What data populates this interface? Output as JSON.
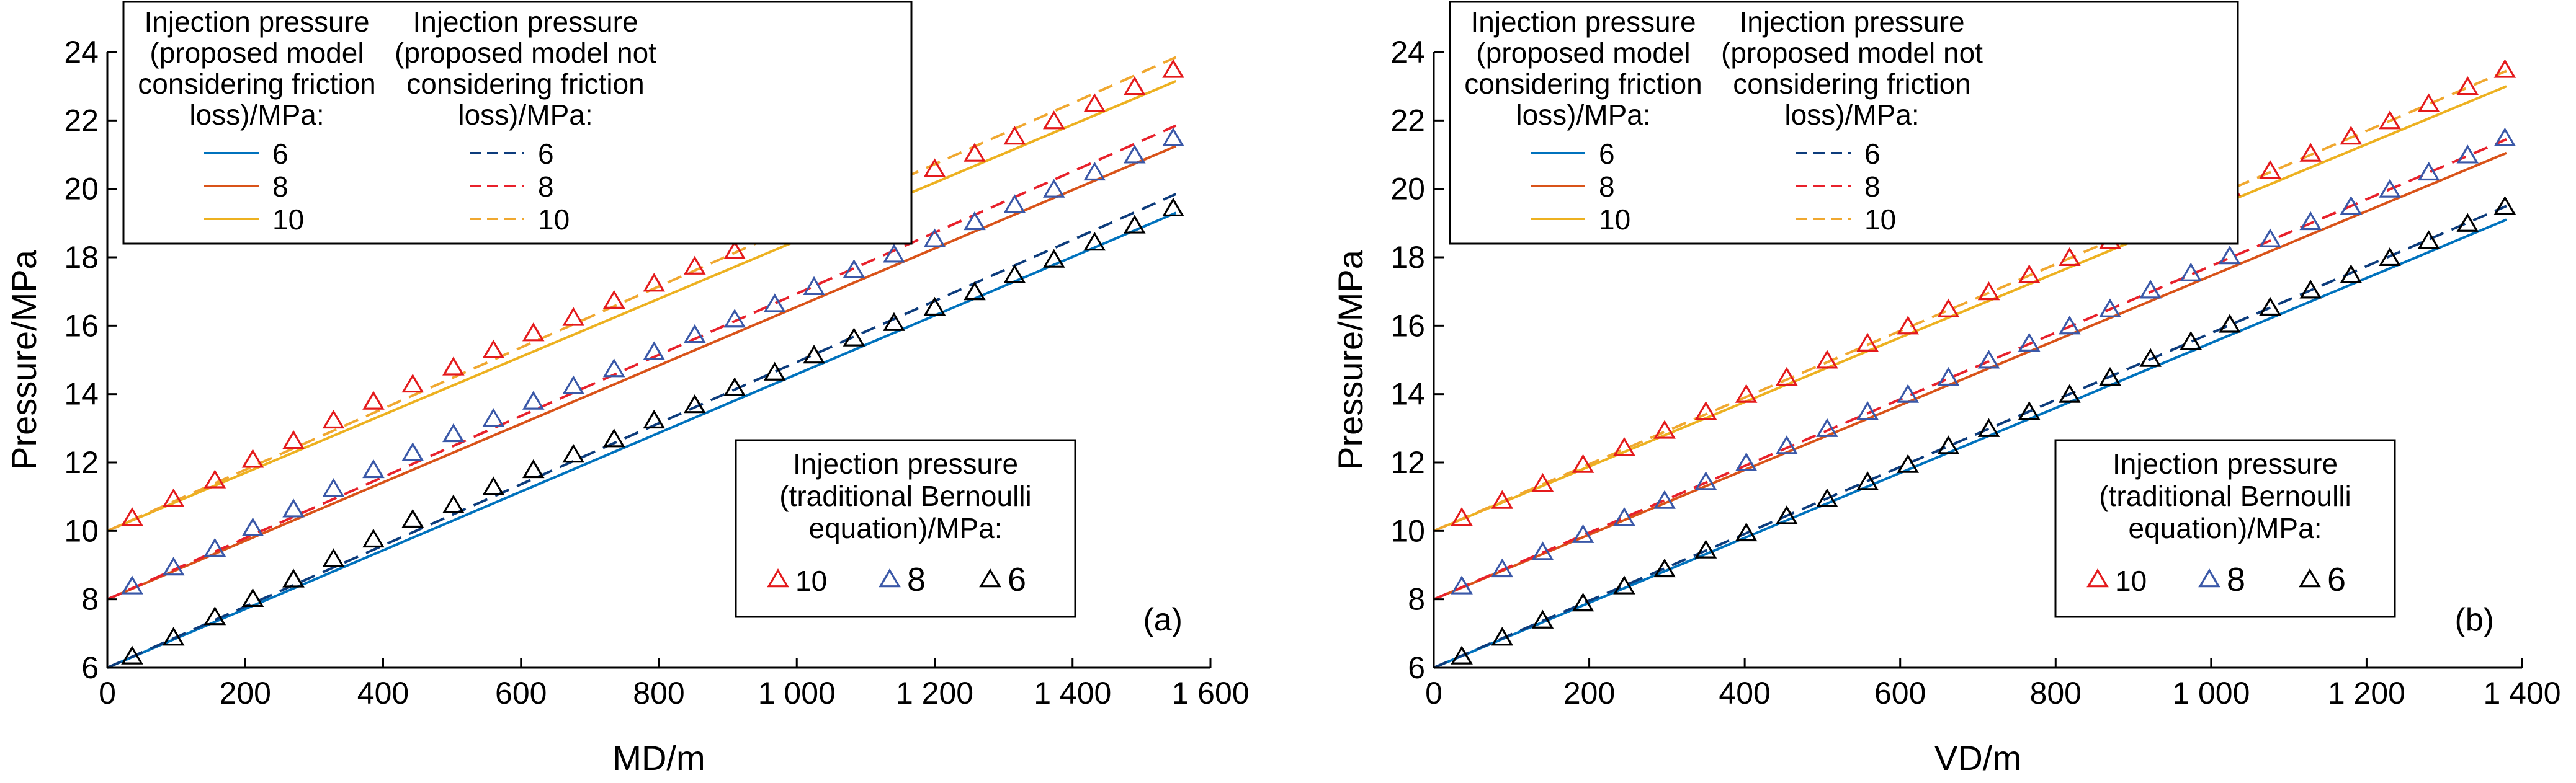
{
  "colors": {
    "p6_line": "#0072BD",
    "p8_line": "#D95319",
    "p10_line": "#EDB120",
    "p6_dash": "#0D3C7C",
    "p8_dash": "#E8212B",
    "p10_dash": "#F0A830",
    "p6_marker": "#000000",
    "p8_marker": "#3A58A8",
    "p10_marker": "#E41A1C",
    "axis": "#000000"
  },
  "chart_data": [
    {
      "type": "line",
      "panel_label": "(a)",
      "xlabel": "MD/m",
      "ylabel": "Pressure/MPa",
      "xlim": [
        0,
        1600
      ],
      "ylim": [
        6,
        24
      ],
      "x_ticks": [
        0,
        200,
        400,
        600,
        800,
        1000,
        1200,
        1400,
        1600
      ],
      "x_tick_labels": [
        "0",
        "200",
        "400",
        "600",
        "800",
        "1 000",
        "1 200",
        "1 400",
        "1 600"
      ],
      "y_ticks": [
        6,
        8,
        10,
        12,
        14,
        16,
        18,
        20,
        22,
        24
      ],
      "y_tick_labels": [
        "6",
        "8",
        "10",
        "12",
        "14",
        "16",
        "18",
        "20",
        "22",
        "24"
      ],
      "grid": false,
      "legend_friction_title": "Injection pressure (proposed model considering friction loss)/MPa:",
      "legend_friction_title_lines": [
        "Injection pressure",
        "(proposed model",
        "considering friction",
        "loss)/MPa:"
      ],
      "legend_nofriction_title": "Injection pressure (proposed model not considering friction loss)/MPa:",
      "legend_nofriction_title_lines": [
        "Injection pressure",
        "(proposed model not",
        "considering friction",
        "loss)/MPa:"
      ],
      "legend_bernoulli_title": "Injection pressure (traditional Bernoulli equation)/MPa:",
      "legend_bernoulli_title_lines": [
        "Injection pressure",
        "(traditional Bernoulli",
        "equation)/MPa:"
      ],
      "legend_line_labels": [
        "6",
        "8",
        "10"
      ],
      "legend_marker_labels": [
        "10",
        "8",
        "6"
      ],
      "series": [
        {
          "name": "6",
          "kind": "solid",
          "x": [
            0,
            1550
          ],
          "y": [
            6.0,
            19.3
          ]
        },
        {
          "name": "8",
          "kind": "solid",
          "x": [
            0,
            1550
          ],
          "y": [
            8.0,
            21.25
          ]
        },
        {
          "name": "10",
          "kind": "solid",
          "x": [
            0,
            1550
          ],
          "y": [
            10.0,
            23.15
          ]
        },
        {
          "name": "6",
          "kind": "dashed",
          "x": [
            0,
            1550
          ],
          "y": [
            6.0,
            19.85
          ]
        },
        {
          "name": "8",
          "kind": "dashed",
          "x": [
            0,
            1550
          ],
          "y": [
            8.0,
            21.85
          ]
        },
        {
          "name": "10",
          "kind": "dashed",
          "x": [
            0,
            1550
          ],
          "y": [
            10.0,
            23.85
          ]
        },
        {
          "name": "6",
          "kind": "marker",
          "x": [
            36,
            96,
            156,
            211,
            270,
            328,
            386,
            443,
            502,
            560,
            618,
            676,
            735,
            793,
            852,
            910,
            968,
            1025,
            1083,
            1141,
            1200,
            1258,
            1316,
            1373,
            1432,
            1490,
            1546
          ],
          "y": [
            6.3,
            6.85,
            7.45,
            7.98,
            8.55,
            9.15,
            9.72,
            10.3,
            10.72,
            11.25,
            11.75,
            12.2,
            12.65,
            13.2,
            13.65,
            14.15,
            14.6,
            15.1,
            15.6,
            16.05,
            16.5,
            16.95,
            17.45,
            17.9,
            18.4,
            18.9,
            19.4
          ]
        },
        {
          "name": "8",
          "kind": "marker",
          "x": [
            36,
            96,
            156,
            211,
            270,
            328,
            386,
            443,
            502,
            560,
            618,
            676,
            735,
            793,
            852,
            910,
            968,
            1025,
            1083,
            1141,
            1200,
            1258,
            1316,
            1373,
            1432,
            1490,
            1546
          ],
          "y": [
            8.35,
            8.9,
            9.45,
            10.05,
            10.6,
            11.2,
            11.75,
            12.25,
            12.8,
            13.25,
            13.75,
            14.2,
            14.7,
            15.2,
            15.7,
            16.15,
            16.6,
            17.1,
            17.6,
            18.05,
            18.5,
            19.0,
            19.5,
            19.95,
            20.45,
            20.95,
            21.45
          ]
        },
        {
          "name": "10",
          "kind": "marker",
          "x": [
            36,
            96,
            156,
            211,
            270,
            328,
            386,
            443,
            502,
            560,
            618,
            676,
            735,
            793,
            852,
            910,
            968,
            1025,
            1083,
            1141,
            1200,
            1258,
            1316,
            1373,
            1432,
            1490,
            1546
          ],
          "y": [
            10.35,
            10.9,
            11.45,
            12.05,
            12.6,
            13.2,
            13.75,
            14.25,
            14.75,
            15.25,
            15.75,
            16.2,
            16.7,
            17.2,
            17.7,
            18.15,
            18.6,
            19.1,
            19.6,
            20.05,
            20.55,
            21.0,
            21.5,
            21.95,
            22.45,
            22.95,
            23.45
          ]
        }
      ]
    },
    {
      "type": "line",
      "panel_label": "(b)",
      "xlabel": "VD/m",
      "ylabel": "Pressure/MPa",
      "xlim": [
        0,
        1400
      ],
      "ylim": [
        6,
        24
      ],
      "x_ticks": [
        0,
        200,
        400,
        600,
        800,
        1000,
        1200,
        1400
      ],
      "x_tick_labels": [
        "0",
        "200",
        "400",
        "600",
        "800",
        "1 000",
        "1 200",
        "1 400"
      ],
      "y_ticks": [
        6,
        8,
        10,
        12,
        14,
        16,
        18,
        20,
        22,
        24
      ],
      "y_tick_labels": [
        "6",
        "8",
        "10",
        "12",
        "14",
        "16",
        "18",
        "20",
        "22",
        "24"
      ],
      "grid": false,
      "legend_friction_title": "Injection pressure (proposed model considering friction loss)/MPa:",
      "legend_friction_title_lines": [
        "Injection pressure",
        "(proposed model",
        "considering friction",
        "loss)/MPa:"
      ],
      "legend_nofriction_title": "Injection pressure (proposed model not considering friction loss)/MPa:",
      "legend_nofriction_title_lines": [
        "Injection pressure",
        "(proposed model not",
        "considering friction",
        "loss)/MPa:"
      ],
      "legend_bernoulli_title": "Injection pressure (traditional Bernoulli equation)/MPa:",
      "legend_bernoulli_title_lines": [
        "Injection pressure",
        "(traditional Bernoulli",
        "equation)/MPa:"
      ],
      "legend_line_labels": [
        "6",
        "8",
        "10"
      ],
      "legend_marker_labels": [
        "10",
        "8",
        "6"
      ],
      "series": [
        {
          "name": "6",
          "kind": "solid",
          "x": [
            0,
            1380
          ],
          "y": [
            6.0,
            19.1
          ]
        },
        {
          "name": "8",
          "kind": "solid",
          "x": [
            0,
            1380
          ],
          "y": [
            8.0,
            21.05
          ]
        },
        {
          "name": "10",
          "kind": "solid",
          "x": [
            0,
            1380
          ],
          "y": [
            10.0,
            23.0
          ]
        },
        {
          "name": "6",
          "kind": "dashed",
          "x": [
            0,
            1380
          ],
          "y": [
            6.0,
            19.5
          ]
        },
        {
          "name": "8",
          "kind": "dashed",
          "x": [
            0,
            1380
          ],
          "y": [
            8.0,
            21.45
          ]
        },
        {
          "name": "10",
          "kind": "dashed",
          "x": [
            0,
            1380
          ],
          "y": [
            10.0,
            23.45
          ]
        },
        {
          "name": "6",
          "kind": "marker",
          "x": [
            36,
            88,
            140,
            192,
            245,
            297,
            350,
            402,
            454,
            506,
            558,
            610,
            662,
            714,
            766,
            818,
            870,
            922,
            974,
            1024,
            1076,
            1128,
            1180,
            1230,
            1280,
            1330,
            1378
          ],
          "y": [
            6.3,
            6.85,
            7.35,
            7.85,
            8.35,
            8.85,
            9.4,
            9.9,
            10.4,
            10.9,
            11.4,
            11.9,
            12.45,
            12.95,
            13.45,
            13.95,
            14.45,
            15.0,
            15.5,
            16.0,
            16.5,
            17.0,
            17.45,
            17.95,
            18.45,
            18.95,
            19.45
          ]
        },
        {
          "name": "8",
          "kind": "marker",
          "x": [
            36,
            88,
            140,
            192,
            245,
            297,
            350,
            402,
            454,
            506,
            558,
            610,
            662,
            714,
            766,
            818,
            870,
            922,
            974,
            1024,
            1076,
            1128,
            1180,
            1230,
            1280,
            1330,
            1378
          ],
          "y": [
            8.35,
            8.85,
            9.35,
            9.85,
            10.35,
            10.85,
            11.4,
            11.95,
            12.45,
            12.95,
            13.45,
            13.95,
            14.45,
            14.95,
            15.45,
            15.95,
            16.45,
            17.0,
            17.5,
            18.0,
            18.5,
            19.0,
            19.45,
            19.95,
            20.45,
            20.95,
            21.45
          ]
        },
        {
          "name": "10",
          "kind": "marker",
          "x": [
            36,
            88,
            140,
            192,
            245,
            297,
            350,
            402,
            454,
            506,
            558,
            610,
            662,
            714,
            766,
            818,
            870,
            922,
            974,
            1024,
            1076,
            1128,
            1180,
            1230,
            1280,
            1330,
            1378
          ],
          "y": [
            10.35,
            10.85,
            11.35,
            11.9,
            12.4,
            12.9,
            13.45,
            13.95,
            14.45,
            14.95,
            15.45,
            15.95,
            16.45,
            16.95,
            17.45,
            17.95,
            18.45,
            18.95,
            19.5,
            20.0,
            20.5,
            21.0,
            21.5,
            21.95,
            22.45,
            22.95,
            23.45
          ]
        }
      ]
    }
  ]
}
